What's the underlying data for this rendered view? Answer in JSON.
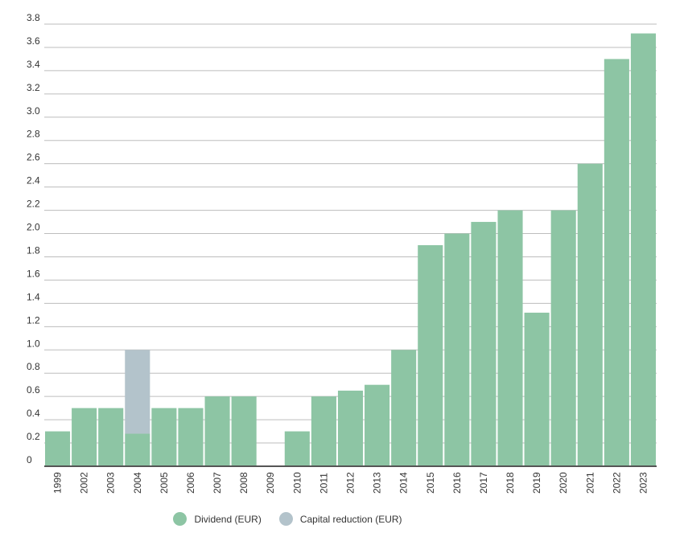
{
  "chart_data": {
    "type": "bar",
    "stacked": true,
    "categories": [
      "1999",
      "2002",
      "2003",
      "2004",
      "2005",
      "2006",
      "2007",
      "2008",
      "2009",
      "2010",
      "2011",
      "2012",
      "2013",
      "2014",
      "2015",
      "2016",
      "2017",
      "2018",
      "2019",
      "2020",
      "2021",
      "2022",
      "2023"
    ],
    "series": [
      {
        "name": "Dividend (EUR)",
        "color": "#8dc5a4",
        "values": [
          0.3,
          0.5,
          0.5,
          0.28,
          0.5,
          0.5,
          0.6,
          0.6,
          0,
          0.3,
          0.6,
          0.65,
          0.7,
          1.0,
          1.9,
          2.0,
          2.1,
          2.2,
          1.32,
          2.2,
          2.6,
          3.5,
          3.72
        ]
      },
      {
        "name": "Capital reduction (EUR)",
        "color": "#b3c3cb",
        "values": [
          0,
          0,
          0,
          0.72,
          0,
          0,
          0,
          0,
          0,
          0,
          0,
          0,
          0,
          0,
          0,
          0,
          0,
          0,
          0,
          0,
          0,
          0,
          0
        ]
      }
    ],
    "ylim": [
      0,
      3.8
    ],
    "yticks": [
      "0",
      "0.2",
      "0.4",
      "0.6",
      "0.8",
      "1.0",
      "1.2",
      "1.4",
      "1.6",
      "1.8",
      "2.0",
      "2.2",
      "2.4",
      "2.6",
      "2.8",
      "3.0",
      "3.2",
      "3.4",
      "3.6",
      "3.8"
    ],
    "grid": true,
    "legend_position": "bottom-center",
    "title": "",
    "xlabel": "",
    "ylabel": ""
  }
}
